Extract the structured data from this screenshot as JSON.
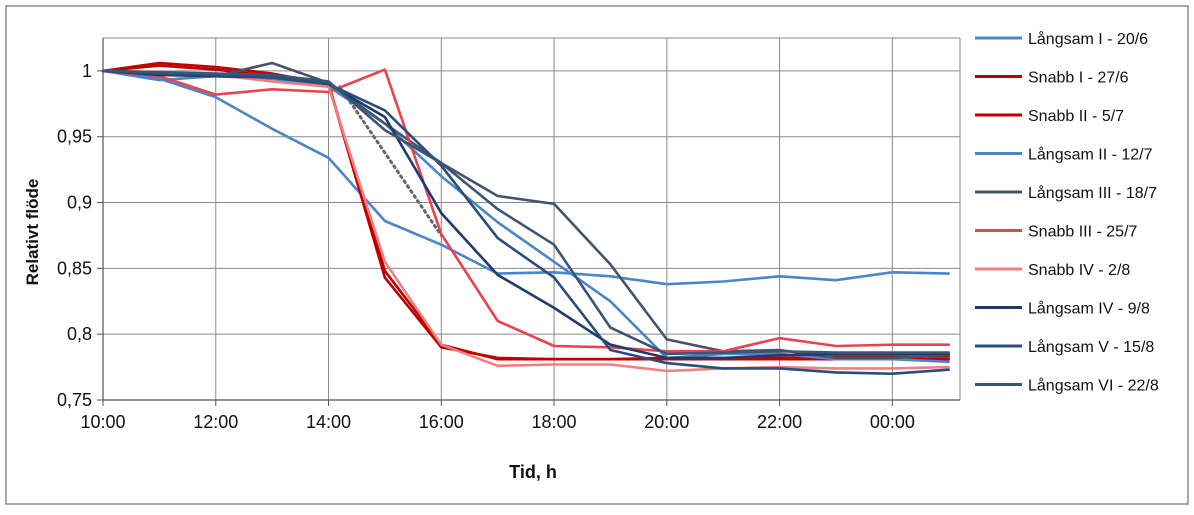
{
  "chart_data": {
    "type": "line",
    "title": "",
    "xlabel": "Tid, h",
    "ylabel": "Relativt flöde",
    "x": [
      10,
      11,
      12,
      13,
      14,
      15,
      16,
      17,
      18,
      19,
      20,
      21,
      22,
      23,
      24,
      25
    ],
    "x_ticks": [
      {
        "value": 10,
        "label": "10:00"
      },
      {
        "value": 12,
        "label": "12:00"
      },
      {
        "value": 14,
        "label": "14:00"
      },
      {
        "value": 16,
        "label": "16:00"
      },
      {
        "value": 18,
        "label": "18:00"
      },
      {
        "value": 20,
        "label": "20:00"
      },
      {
        "value": 22,
        "label": "22:00"
      },
      {
        "value": 24,
        "label": "00:00"
      }
    ],
    "y_ticks": [
      {
        "value": 0.75,
        "label": "0,75"
      },
      {
        "value": 0.8,
        "label": "0,8"
      },
      {
        "value": 0.85,
        "label": "0,85"
      },
      {
        "value": 0.9,
        "label": "0,9"
      },
      {
        "value": 0.95,
        "label": "0,95"
      },
      {
        "value": 1.0,
        "label": "1"
      }
    ],
    "xlim": [
      10,
      25.2
    ],
    "ylim": [
      0.75,
      1.025
    ],
    "grid": true,
    "legend_position": "right",
    "series": [
      {
        "name": "Långsam I - 20/6",
        "color": "#4a86c8",
        "values": [
          1.0,
          0.994,
          0.98,
          0.956,
          0.934,
          0.886,
          0.868,
          0.846,
          0.847,
          0.844,
          0.838,
          0.84,
          0.844,
          0.841,
          0.847,
          0.846
        ]
      },
      {
        "name": "Snabb I - 27/6",
        "color": "#c00000",
        "values": [
          1.0,
          1.006,
          1.003,
          0.998,
          0.99,
          0.848,
          0.792,
          0.781,
          0.781,
          0.781,
          0.782,
          0.782,
          0.782,
          0.783,
          0.783,
          0.783
        ]
      },
      {
        "name": "Snabb II - 5/7",
        "color": "#c00000",
        "values": [
          1.0,
          1.004,
          1.001,
          0.996,
          0.99,
          0.843,
          0.79,
          0.782,
          0.781,
          0.781,
          0.781,
          0.781,
          0.781,
          0.781,
          0.781,
          0.781
        ]
      },
      {
        "name": "Långsam II - 12/7",
        "color": "#4a86c8",
        "values": [
          1.0,
          0.993,
          0.996,
          0.994,
          0.988,
          0.96,
          0.92,
          0.885,
          0.855,
          0.825,
          0.782,
          0.785,
          0.785,
          0.781,
          0.781,
          0.779
        ]
      },
      {
        "name": "Långsam III - 18/7",
        "color": "#44546a",
        "values": [
          1.0,
          0.999,
          0.996,
          1.006,
          0.991,
          0.96,
          0.93,
          0.905,
          0.899,
          0.853,
          0.796,
          0.787,
          0.788,
          0.782,
          0.782,
          0.784
        ]
      },
      {
        "name": "Snabb III - 25/7",
        "color": "#e8434f",
        "values": [
          1.0,
          0.996,
          0.982,
          0.986,
          0.984,
          1.001,
          0.876,
          0.81,
          0.791,
          0.79,
          0.787,
          0.787,
          0.797,
          0.791,
          0.792,
          0.792
        ]
      },
      {
        "name": "Snabb IV - 2/8",
        "color": "#f08080",
        "values": [
          1.0,
          0.999,
          0.997,
          0.992,
          0.988,
          0.855,
          0.792,
          0.776,
          0.777,
          0.777,
          0.772,
          0.774,
          0.775,
          0.774,
          0.774,
          0.775
        ]
      },
      {
        "name": "Långsam IV - 9/8",
        "color": "#1f3b6e",
        "values": [
          1.0,
          0.997,
          0.996,
          0.995,
          0.99,
          0.965,
          0.892,
          0.845,
          0.82,
          0.792,
          0.782,
          0.782,
          0.784,
          0.785,
          0.785,
          0.785
        ]
      },
      {
        "name": "Långsam V - 15/8",
        "color": "#2a4d7a",
        "values": [
          1.0,
          0.998,
          0.997,
          0.995,
          0.99,
          0.97,
          0.928,
          0.873,
          0.843,
          0.788,
          0.778,
          0.774,
          0.774,
          0.771,
          0.77,
          0.773
        ]
      },
      {
        "name": "Långsam VI - 22/8",
        "color": "#3b5575",
        "values": [
          1.0,
          0.999,
          0.998,
          0.997,
          0.992,
          0.955,
          0.93,
          0.895,
          0.868,
          0.805,
          0.785,
          0.786,
          0.787,
          0.786,
          0.786,
          0.786
        ]
      }
    ],
    "annotations": [
      {
        "kind": "dotted-line",
        "color": "#666666",
        "x": [
          14.2,
          16.0
        ],
        "y": [
          0.988,
          0.875
        ]
      }
    ]
  }
}
